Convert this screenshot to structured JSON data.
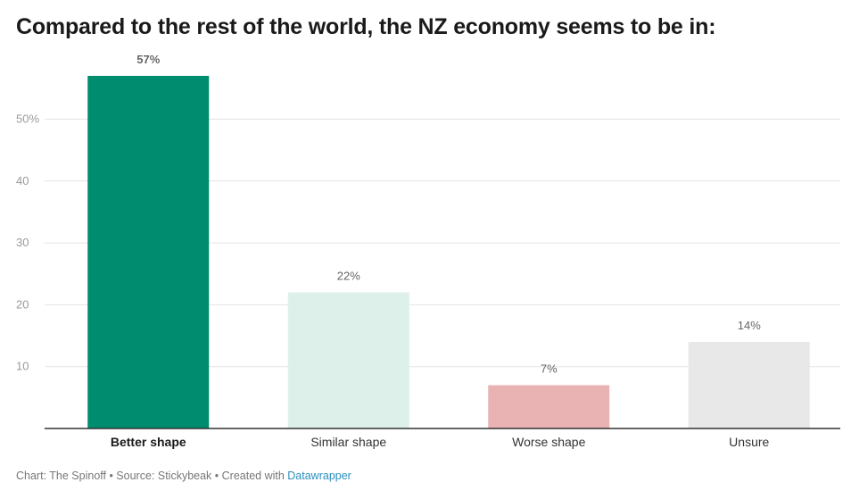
{
  "title": "Compared to the rest of the world, the NZ economy seems to be in:",
  "footer": {
    "text": "Chart: The Spinoff • Source: Stickybeak • Created with ",
    "link": "Datawrapper"
  },
  "chart_data": {
    "type": "bar",
    "categories": [
      "Better shape",
      "Similar shape",
      "Worse shape",
      "Unsure"
    ],
    "values": [
      57,
      22,
      7,
      14
    ],
    "value_labels": [
      "57%",
      "22%",
      "7%",
      "14%"
    ],
    "colors": [
      "#008c6e",
      "#ddf1ea",
      "#e8b3b2",
      "#e8e8e8"
    ],
    "highlight_index": 0,
    "y_ticks": [
      10,
      20,
      30,
      40,
      50
    ],
    "y_tick_labels": [
      "10",
      "20",
      "30",
      "40",
      "50%"
    ],
    "ylim": [
      0,
      57
    ],
    "grid": true,
    "xlabel": "",
    "ylabel": ""
  }
}
